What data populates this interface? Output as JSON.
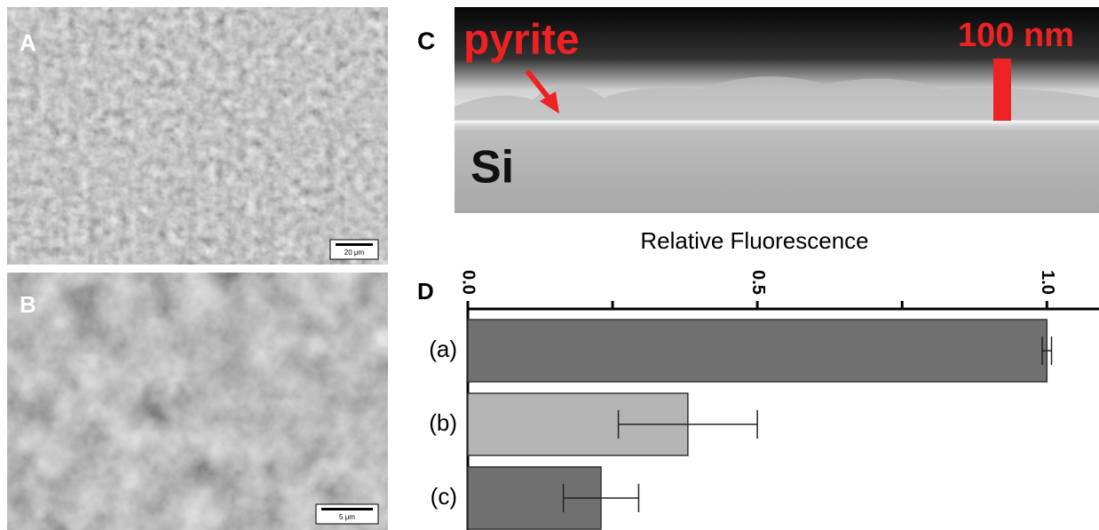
{
  "panels": {
    "a": {
      "label": "A",
      "scale_bar": "20 μm"
    },
    "b": {
      "label": "B",
      "scale_bar": "5 μm"
    },
    "c": {
      "label": "C",
      "annotation": "pyrite",
      "scale_bar": "100 nm",
      "substrate": "Si"
    }
  },
  "chart_data": {
    "type": "hbar",
    "panel_label": "D",
    "title": "Relative Fluorescence",
    "categories": [
      "(a)",
      "(b)",
      "(c)"
    ],
    "values": [
      1.0,
      0.38,
      0.23
    ],
    "errors": [
      0.008,
      0.12,
      0.065
    ],
    "colors": [
      "#707070",
      "#b4b4b4",
      "#707070"
    ],
    "xlim": [
      0,
      1.09
    ],
    "xticks": [
      {
        "value": 0,
        "label": "0.0"
      },
      {
        "value": 0.5,
        "label": "0.5"
      },
      {
        "value": 1,
        "label": "1.0"
      }
    ],
    "minor_xticks": [
      0.25,
      0.75
    ]
  }
}
